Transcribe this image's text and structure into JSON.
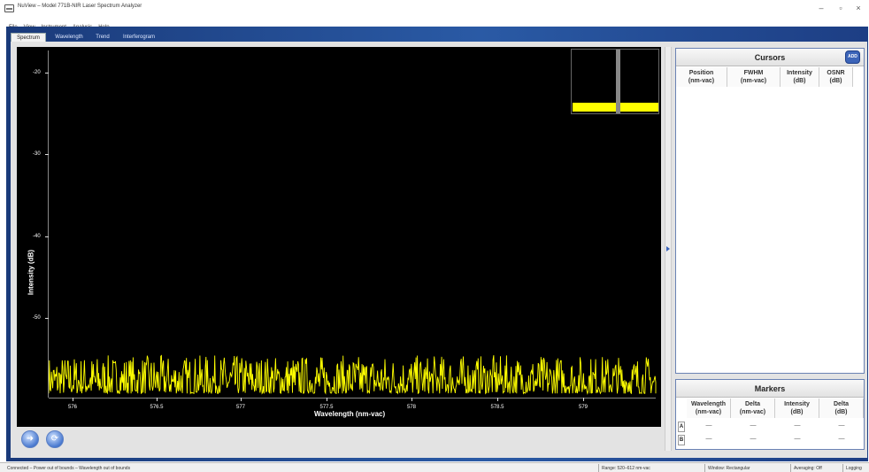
{
  "window": {
    "title": "NuView – Model 771B-NIR Laser Spectrum Analyzer",
    "minimize": "–",
    "restore": "▫",
    "close": "×"
  },
  "menu": [
    "File",
    "View",
    "Instrument",
    "Analysis",
    "Help"
  ],
  "tabs": [
    "Spectrum",
    "Wavelength",
    "Trend",
    "Interferogram"
  ],
  "active_tab": "Spectrum",
  "chart_data": {
    "type": "line",
    "xlabel": "Wavelength (nm-vac)",
    "ylabel": "Intensity (dB)",
    "x_ticks": [
      "576",
      "576.5",
      "577",
      "577.5",
      "578",
      "578.5",
      "579"
    ],
    "y_ticks": [
      "-20",
      "-30",
      "-40",
      "-50"
    ],
    "xlim": [
      575.83,
      579.35
    ],
    "ylim": [
      -58.2,
      -16.5
    ],
    "series": [
      {
        "color": "#ffff00",
        "noise_floor_db": -56.5,
        "noise_peak_db": -53.1
      }
    ]
  },
  "cursors": {
    "title": "Cursors",
    "add_label": "ADD",
    "columns": [
      {
        "name": "Position",
        "unit": "(nm-vac)"
      },
      {
        "name": "FWHM",
        "unit": "(nm-vac)"
      },
      {
        "name": "Intensity",
        "unit": "(dB)"
      },
      {
        "name": "OSNR",
        "unit": "(dB)"
      }
    ]
  },
  "markers": {
    "title": "Markers",
    "columns": [
      {
        "name": "Wavelength",
        "unit": "(nm-vac)"
      },
      {
        "name": "Delta",
        "unit": "(nm-vac)"
      },
      {
        "name": "Intensity",
        "unit": "(dB)"
      },
      {
        "name": "Delta",
        "unit": "(dB)"
      }
    ],
    "rows": [
      {
        "label": "A",
        "values": [
          "—",
          "—",
          "—",
          "—"
        ]
      },
      {
        "label": "B",
        "values": [
          "—",
          "—",
          "—",
          "—"
        ]
      }
    ]
  },
  "buttons": {
    "run_icon": "➜",
    "refresh_icon": "⟳"
  },
  "status": {
    "message": "Connected – Power out of bounds – Wavelength out of bounds",
    "range": "Range: 520–612 nm-vac",
    "window": "Window: Rectangular",
    "averaging": "Averaging: Off",
    "logging": "Logging"
  },
  "colors": {
    "frame": "#2a5aa5",
    "trace": "#ffff00",
    "accent": "#3c64b8"
  }
}
